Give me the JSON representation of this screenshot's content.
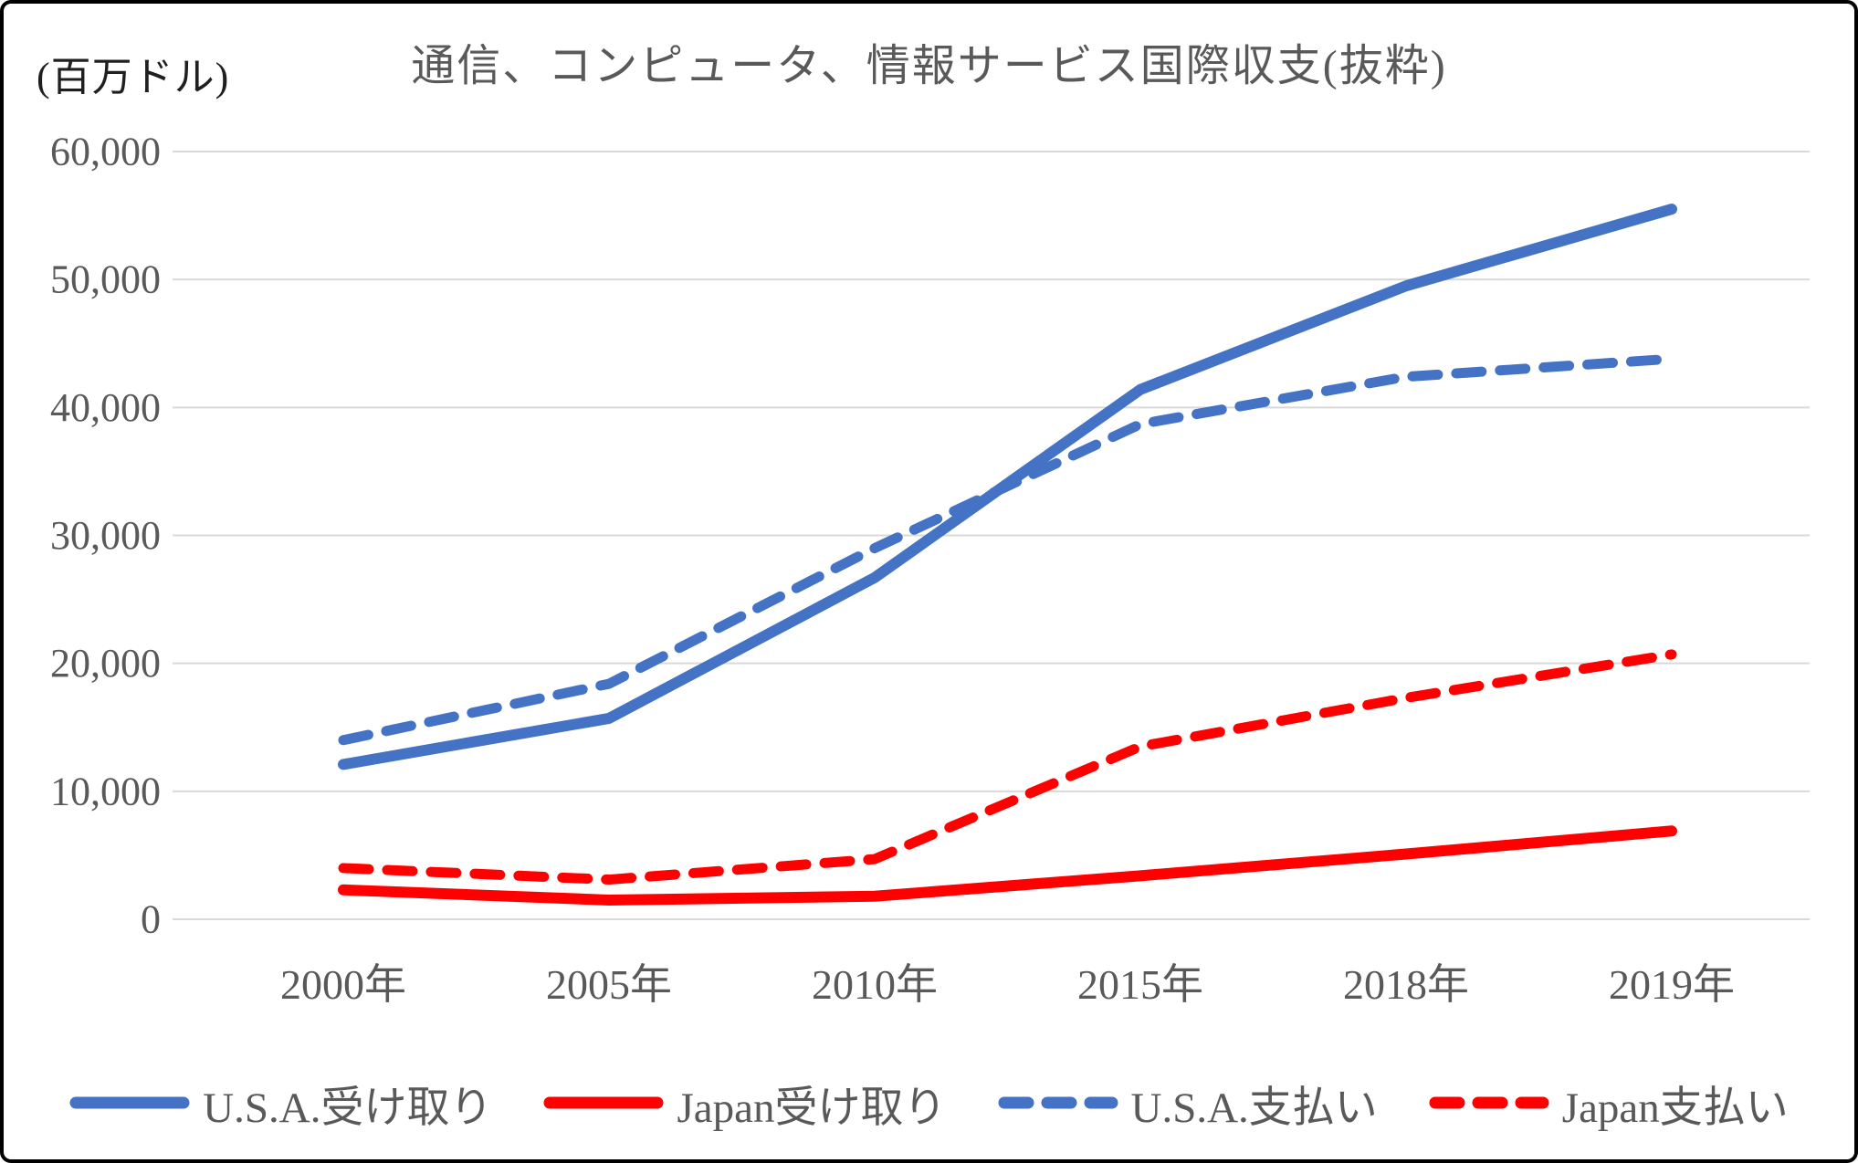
{
  "chart_data": {
    "type": "line",
    "title": "通信、コンピュータ、情報サービス国際収支(抜粋)",
    "unit_label": "(百万ドル)",
    "categories": [
      "2000年",
      "2005年",
      "2010年",
      "2015年",
      "2018年",
      "2019年"
    ],
    "series": [
      {
        "name": "U.S.A.受け取り",
        "color": "#4472C4",
        "style": "solid",
        "values": [
          12100,
          15700,
          26700,
          41400,
          49500,
          55500
        ]
      },
      {
        "name": "Japan受け取り",
        "color": "#FF0000",
        "style": "solid",
        "values": [
          2300,
          1500,
          1800,
          3400,
          5100,
          6900
        ]
      },
      {
        "name": "U.S.A.支払い",
        "color": "#4472C4",
        "style": "dashed",
        "values": [
          14000,
          18400,
          29000,
          38700,
          42400,
          43800
        ]
      },
      {
        "name": "Japan支払い",
        "color": "#FF0000",
        "style": "dashed",
        "values": [
          4000,
          3100,
          4700,
          13500,
          17300,
          20700
        ]
      }
    ],
    "y_axis": {
      "min": 0,
      "max": 60000,
      "step": 10000,
      "tick_labels": [
        "0",
        "10,000",
        "20,000",
        "30,000",
        "40,000",
        "50,000",
        "60,000"
      ]
    },
    "grid": true,
    "legend_position": "bottom"
  },
  "colors": {
    "grid": "#D9D9D9",
    "text": "#595959",
    "frame_border": "#000000",
    "background": "#FFFFFF"
  }
}
